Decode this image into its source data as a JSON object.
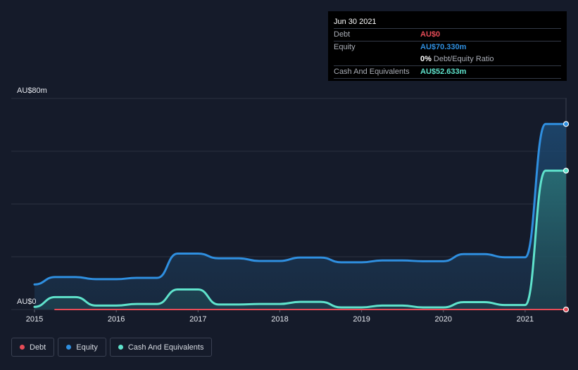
{
  "tooltip": {
    "date": "Jun 30 2021",
    "rows": {
      "debt": {
        "label": "Debt",
        "value": "AU$0"
      },
      "equity": {
        "label": "Equity",
        "value": "AU$70.330m"
      },
      "ratio": {
        "pct": "0%",
        "text": "Debt/Equity Ratio"
      },
      "cash": {
        "label": "Cash And Equivalents",
        "value": "AU$52.633m"
      }
    }
  },
  "legend": [
    {
      "name": "Debt",
      "color": "#e64c57"
    },
    {
      "name": "Equity",
      "color": "#2f8fe0"
    },
    {
      "name": "Cash And Equivalents",
      "color": "#5fe3cc"
    }
  ],
  "chart_data": {
    "type": "area",
    "y_ticks": [
      {
        "value": 80,
        "label": "AU$80m"
      },
      {
        "value": 0,
        "label": "AU$0"
      }
    ],
    "ylim": [
      0,
      80
    ],
    "xlim": [
      2015.0,
      2021.5
    ],
    "x_ticks": [
      "2015",
      "2016",
      "2017",
      "2018",
      "2019",
      "2020",
      "2021"
    ],
    "grid": true,
    "series": [
      {
        "name": "Debt",
        "color": "#e64c57",
        "x": [
          2015.25,
          2021.5
        ],
        "values": [
          0,
          0
        ]
      },
      {
        "name": "Equity",
        "color": "#2f8fe0",
        "x": [
          2015.0,
          2015.25,
          2015.5,
          2015.75,
          2016.0,
          2016.25,
          2016.5,
          2016.75,
          2017.0,
          2017.25,
          2017.5,
          2017.75,
          2018.0,
          2018.25,
          2018.5,
          2018.75,
          2019.0,
          2019.25,
          2019.5,
          2019.75,
          2020.0,
          2020.25,
          2020.5,
          2020.75,
          2021.0,
          2021.25,
          2021.5
        ],
        "values": [
          9.5,
          12.3,
          12.3,
          11.5,
          11.5,
          12.0,
          12.0,
          21.2,
          21.2,
          19.4,
          19.4,
          18.4,
          18.4,
          19.7,
          19.7,
          17.9,
          17.9,
          18.6,
          18.6,
          18.3,
          18.3,
          21.0,
          21.0,
          19.8,
          19.8,
          70.33,
          70.33
        ]
      },
      {
        "name": "Cash And Equivalents",
        "color": "#5fe3cc",
        "x": [
          2015.0,
          2015.25,
          2015.5,
          2015.75,
          2016.0,
          2016.25,
          2016.5,
          2016.75,
          2017.0,
          2017.25,
          2017.5,
          2017.75,
          2018.0,
          2018.25,
          2018.5,
          2018.75,
          2019.0,
          2019.25,
          2019.5,
          2019.75,
          2020.0,
          2020.25,
          2020.5,
          2020.75,
          2021.0,
          2021.25,
          2021.5
        ],
        "values": [
          1.0,
          4.7,
          4.7,
          1.5,
          1.5,
          2.1,
          2.1,
          7.6,
          7.6,
          1.9,
          1.9,
          2.1,
          2.1,
          2.9,
          2.9,
          0.8,
          0.8,
          1.5,
          1.5,
          0.8,
          0.8,
          2.8,
          2.8,
          1.7,
          1.7,
          52.633,
          52.633
        ]
      }
    ]
  }
}
